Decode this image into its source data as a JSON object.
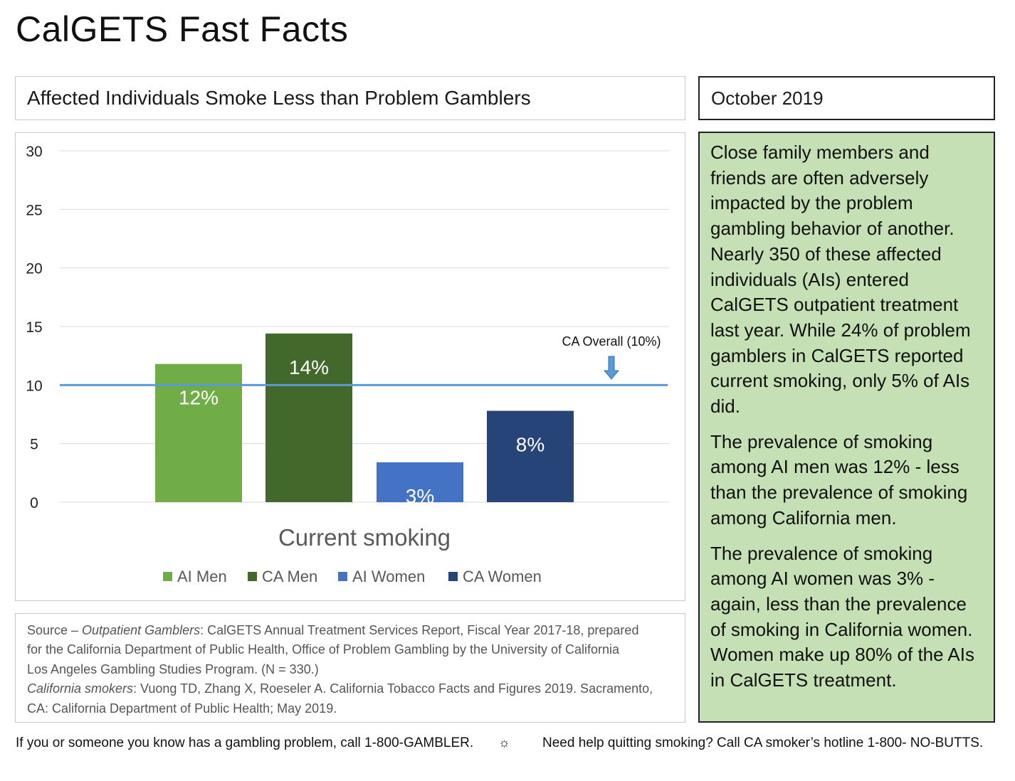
{
  "page_title": "CalGETS Fast Facts",
  "chart_title": "Affected Individuals Smoke Less than Problem Gamblers",
  "date": "October 2019",
  "facts": [
    "Close family members and friends are often adversely impacted by the problem gambling behavior of another. Nearly 350 of these affected individuals (AIs) entered CalGETS outpatient treatment last year. While 24% of problem gamblers in CalGETS reported current smoking, only 5% of AIs did.",
    "The prevalence of smoking among AI men was 12% - less than the prevalence of smoking among California men.",
    "The prevalence of smoking among AI women was 3% - again, less than the prevalence of smoking in California women. Women make up 80% of the AIs in CalGETS treatment."
  ],
  "source": {
    "prefix": "Source – ",
    "title1": "Outpatient Gamblers",
    "text1": ": CalGETS Annual Treatment Services Report, Fiscal Year 2017-18, prepared",
    "line2": "for the California Department of Public Health, Office of Problem Gambling by the University of California",
    "line3": "Los Angeles Gambling Studies Program. (N = 330.)",
    "title2": "California smokers",
    "text2": ": Vuong TD, Zhang X, Roeseler A. California Tobacco Facts and Figures 2019. Sacramento,",
    "line5": "CA: California Department of Public Health; May 2019."
  },
  "footer": {
    "left": "If you or someone you know has a gambling problem, call 1-800-GAMBLER.",
    "separator": "☼",
    "right": "Need help quitting smoking? Call CA smoker’s hotline 1-800- NO-BUTTS."
  },
  "chart_data": {
    "type": "bar",
    "category": "Current smoking",
    "xlabel": "Current smoking",
    "ylim": [
      0,
      30
    ],
    "yticks": [
      0,
      5,
      10,
      15,
      20,
      25,
      30
    ],
    "grid": true,
    "legend_position": "bottom",
    "series": [
      {
        "name": "AI Men",
        "value": 11.8,
        "label": "12%",
        "color": "#70ad47"
      },
      {
        "name": "CA Men",
        "value": 14.4,
        "label": "14%",
        "color": "#43682b"
      },
      {
        "name": "AI Women",
        "value": 3.4,
        "label": "3%",
        "color": "#4472c4"
      },
      {
        "name": "CA Women",
        "value": 7.8,
        "label": "8%",
        "color": "#264478"
      }
    ],
    "reference_line": {
      "value": 10,
      "label": "CA Overall (10%)",
      "color": "#5b9bd5"
    }
  }
}
